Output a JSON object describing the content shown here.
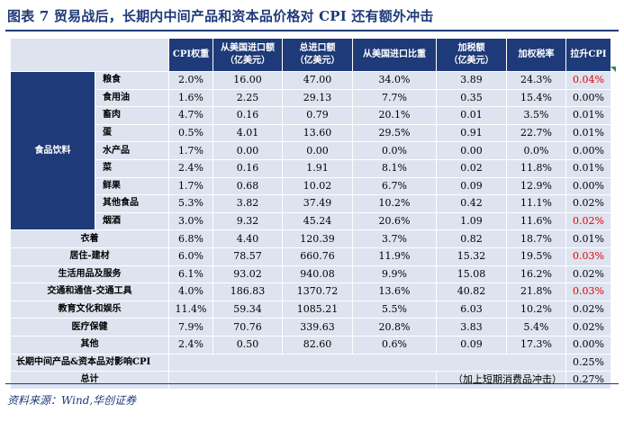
{
  "title": "图表 7   贸易战后，长期内中间产品和资本品价格对 CPI 还有额外冲击",
  "headers": {
    "blank": "",
    "cpi_weight": "CPI权重",
    "us_import": "从美国进口额\n（亿美元）",
    "total_import": "总进口额\n（亿美元）",
    "us_share": "从美国进口比重",
    "tax_amount": "加税额\n（亿美元）",
    "tax_rate": "加权税率",
    "cpi_pull": "拉升CPI"
  },
  "food_category": "食品饮料",
  "food_rows": [
    {
      "name": "粮食",
      "w": "2.0%",
      "us": "16.00",
      "total": "47.00",
      "share": "34.0%",
      "tax": "3.89",
      "rate": "24.3%",
      "pull": "0.04%",
      "red": true
    },
    {
      "name": "食用油",
      "w": "1.6%",
      "us": "2.25",
      "total": "29.13",
      "share": "7.7%",
      "tax": "0.35",
      "rate": "15.4%",
      "pull": "0.00%",
      "red": false
    },
    {
      "name": "畜肉",
      "w": "4.7%",
      "us": "0.16",
      "total": "0.79",
      "share": "20.1%",
      "tax": "0.01",
      "rate": "3.5%",
      "pull": "0.01%",
      "red": false
    },
    {
      "name": "蛋",
      "w": "0.5%",
      "us": "4.01",
      "total": "13.60",
      "share": "29.5%",
      "tax": "0.91",
      "rate": "22.7%",
      "pull": "0.01%",
      "red": false
    },
    {
      "name": "水产品",
      "w": "1.7%",
      "us": "0.00",
      "total": "0.00",
      "share": "0.0%",
      "tax": "0.00",
      "rate": "0.0%",
      "pull": "0.00%",
      "red": false
    },
    {
      "name": "菜",
      "w": "2.4%",
      "us": "0.16",
      "total": "1.91",
      "share": "8.1%",
      "tax": "0.02",
      "rate": "11.8%",
      "pull": "0.01%",
      "red": false
    },
    {
      "name": "鲜果",
      "w": "1.7%",
      "us": "0.68",
      "total": "10.02",
      "share": "6.7%",
      "tax": "0.09",
      "rate": "12.9%",
      "pull": "0.00%",
      "red": false
    },
    {
      "name": "其他食品",
      "w": "5.3%",
      "us": "3.82",
      "total": "37.49",
      "share": "10.2%",
      "tax": "0.42",
      "rate": "11.1%",
      "pull": "0.02%",
      "red": false
    },
    {
      "name": "烟酒",
      "w": "3.0%",
      "us": "9.32",
      "total": "45.24",
      "share": "20.6%",
      "tax": "1.09",
      "rate": "11.6%",
      "pull": "0.02%",
      "red": true
    }
  ],
  "other_rows": [
    {
      "name": "衣着",
      "w": "6.8%",
      "us": "4.40",
      "total": "120.39",
      "share": "3.7%",
      "tax": "0.82",
      "rate": "18.7%",
      "pull": "0.01%",
      "red": false
    },
    {
      "name": "居住-建材",
      "w": "6.0%",
      "us": "78.57",
      "total": "660.76",
      "share": "11.9%",
      "tax": "15.32",
      "rate": "19.5%",
      "pull": "0.03%",
      "red": true
    },
    {
      "name": "生活用品及服务",
      "w": "6.1%",
      "us": "93.02",
      "total": "940.08",
      "share": "9.9%",
      "tax": "15.08",
      "rate": "16.2%",
      "pull": "0.02%",
      "red": false
    },
    {
      "name": "交通和通信-交通工具",
      "w": "4.0%",
      "us": "186.83",
      "total": "1370.72",
      "share": "13.6%",
      "tax": "40.82",
      "rate": "21.8%",
      "pull": "0.03%",
      "red": true
    },
    {
      "name": "教育文化和娱乐",
      "w": "11.4%",
      "us": "59.34",
      "total": "1085.21",
      "share": "5.5%",
      "tax": "6.03",
      "rate": "10.2%",
      "pull": "0.02%",
      "red": false
    },
    {
      "name": "医疗保健",
      "w": "7.9%",
      "us": "70.76",
      "total": "339.63",
      "share": "20.8%",
      "tax": "3.83",
      "rate": "5.4%",
      "pull": "0.02%",
      "red": false
    },
    {
      "name": "其他",
      "w": "2.4%",
      "us": "0.50",
      "total": "82.60",
      "share": "0.6%",
      "tax": "0.09",
      "rate": "17.3%",
      "pull": "0.00%",
      "red": false
    }
  ],
  "long_term": {
    "label": "长期中间产品&资本品对影响CPI",
    "pull": "0.25%"
  },
  "total": {
    "label": "总计",
    "note": "（加上短期消费品冲击）",
    "pull": "0.27%"
  },
  "source": "资料来源：Wind,华创证券"
}
